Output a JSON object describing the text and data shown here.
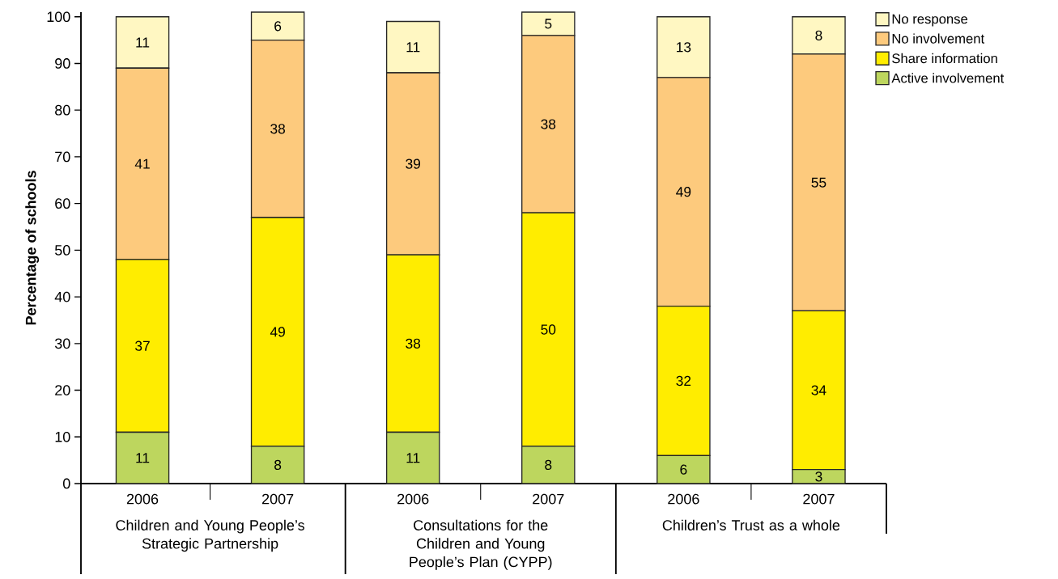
{
  "chart_data": {
    "type": "bar",
    "stacked": true,
    "ylabel": "Percentage of schools",
    "categories": [
      "2006",
      "2007",
      "2006",
      "2007",
      "2006",
      "2007"
    ],
    "series": [
      {
        "name": "Active involvement",
        "color": "#bdd65e",
        "values": [
          11,
          8,
          11,
          8,
          6,
          3
        ]
      },
      {
        "name": "Share information",
        "color": "#ffed00",
        "values": [
          37,
          49,
          38,
          50,
          32,
          34
        ]
      },
      {
        "name": "No involvement",
        "color": "#fdca7d",
        "values": [
          41,
          38,
          39,
          38,
          49,
          55
        ]
      },
      {
        "name": "No response",
        "color": "#fff7c2",
        "values": [
          11,
          6,
          11,
          5,
          13,
          8
        ]
      }
    ],
    "data_labels": true,
    "ylim": [
      0,
      101
    ],
    "yticks": [
      0,
      10,
      20,
      30,
      40,
      50,
      60,
      70,
      80,
      90,
      100
    ],
    "legend": "top right",
    "annotations": [
      "Children and Young People’s Strategic Partnership",
      "Consultations for the Children and Young People’s Plan (CYPP)",
      "Children’s Trust as a whole"
    ]
  }
}
